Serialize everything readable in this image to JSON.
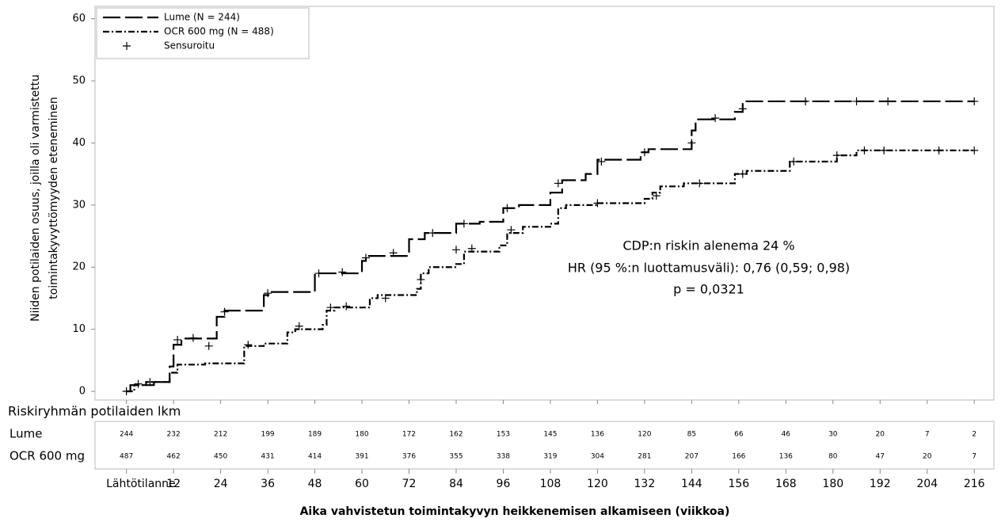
{
  "chart_data": {
    "type": "step",
    "y_label_lines": [
      "Niiden potilaiden osuus, joilla oli varmistettu",
      "toimintakyvyttömyyden eteneminen"
    ],
    "x_label": "Aika vahvistetun toimintakyvyn heikkenemisen alkamiseen (viikkoa)",
    "annotation_lines": [
      "CDP:n riskin alenema 24 %",
      "HR (95 %:n luottamusväli): 0,76 (0,59; 0,98)",
      "p = 0,0321"
    ],
    "xlim": [
      -8,
      221
    ],
    "ylim": [
      -1.4,
      62
    ],
    "xticks": [
      {
        "value": 0,
        "label": "Lähtötilanne"
      },
      12,
      24,
      36,
      48,
      60,
      72,
      84,
      96,
      108,
      120,
      132,
      144,
      156,
      168,
      180,
      192,
      204,
      216
    ],
    "yticks": [
      0,
      10,
      20,
      30,
      40,
      50,
      60
    ],
    "censor_legend": "Sensuroitu",
    "series": [
      {
        "name": "Lume (N = 244)",
        "color": "#000000",
        "dash": "22,6",
        "x": [
          0,
          1,
          7,
          11,
          12,
          14,
          23,
          25,
          35,
          37,
          48,
          60,
          61,
          72,
          76,
          84,
          90,
          96,
          100,
          108,
          111,
          117,
          120,
          131,
          133,
          144,
          145,
          155,
          157,
          216
        ],
        "values": [
          0,
          1,
          1.5,
          4,
          7.5,
          8.5,
          12,
          13,
          15.5,
          16,
          19,
          21,
          21.8,
          24.5,
          25.5,
          27,
          27.3,
          29.5,
          30,
          32,
          34,
          35,
          37.3,
          38.5,
          39,
          42,
          43.8,
          45,
          46.7,
          46.7
        ],
        "censored_x": [
          3,
          6,
          13,
          17,
          25,
          36,
          49,
          55,
          61,
          68,
          78,
          86,
          97,
          110,
          121,
          132,
          144,
          150,
          157,
          173,
          186,
          194,
          216
        ],
        "censored_y": [
          1.2,
          1.5,
          8.3,
          8.6,
          12.8,
          15.8,
          19,
          19.2,
          21.5,
          22.3,
          25.5,
          27,
          29.5,
          33.5,
          37,
          38.5,
          40,
          44,
          45.5,
          46.7,
          46.7,
          46.7,
          46.7
        ]
      },
      {
        "name": "OCR 600 mg (N = 488)",
        "color": "#000000",
        "dash": "8,3,2,3",
        "x": [
          0,
          2,
          5,
          11,
          13,
          20,
          30,
          35,
          41,
          43,
          50,
          51,
          53,
          62,
          64,
          74,
          75,
          77,
          84,
          86,
          95,
          97,
          101,
          108,
          110,
          112,
          120,
          132,
          134,
          136,
          142,
          155,
          158,
          166,
          169,
          181,
          186,
          216
        ],
        "values": [
          0,
          1,
          1.5,
          3,
          4.3,
          4.5,
          7.3,
          7.7,
          9.5,
          10,
          10.7,
          13,
          13.5,
          15,
          15.5,
          16.5,
          19,
          20,
          20.5,
          22.5,
          23.5,
          25.5,
          26.5,
          27,
          29.5,
          30,
          30.3,
          31,
          32,
          33,
          33.5,
          35,
          35.5,
          35.5,
          37,
          38,
          38.8,
          38.8
        ],
        "censored_x": [
          0,
          21,
          31,
          44,
          52,
          56,
          66,
          75,
          84,
          88,
          98,
          120,
          135,
          146,
          157,
          170,
          181,
          188,
          193,
          207,
          216
        ],
        "censored_y": [
          0,
          7.3,
          7.5,
          10.5,
          13.5,
          13.7,
          15,
          18,
          22.8,
          23,
          26,
          30.3,
          31.5,
          33.5,
          35,
          37,
          38,
          38.8,
          38.8,
          38.8,
          38.8
        ]
      }
    ],
    "risk_table": {
      "title": "Riskiryhmän potilaiden lkm",
      "rows": [
        {
          "name": "Lume",
          "values": [
            244,
            232,
            212,
            199,
            189,
            180,
            172,
            162,
            153,
            145,
            136,
            120,
            85,
            66,
            46,
            30,
            20,
            7,
            2
          ]
        },
        {
          "name": "OCR 600 mg",
          "values": [
            487,
            462,
            450,
            431,
            414,
            391,
            376,
            355,
            338,
            319,
            304,
            281,
            207,
            166,
            136,
            80,
            47,
            20,
            7
          ]
        }
      ]
    }
  }
}
